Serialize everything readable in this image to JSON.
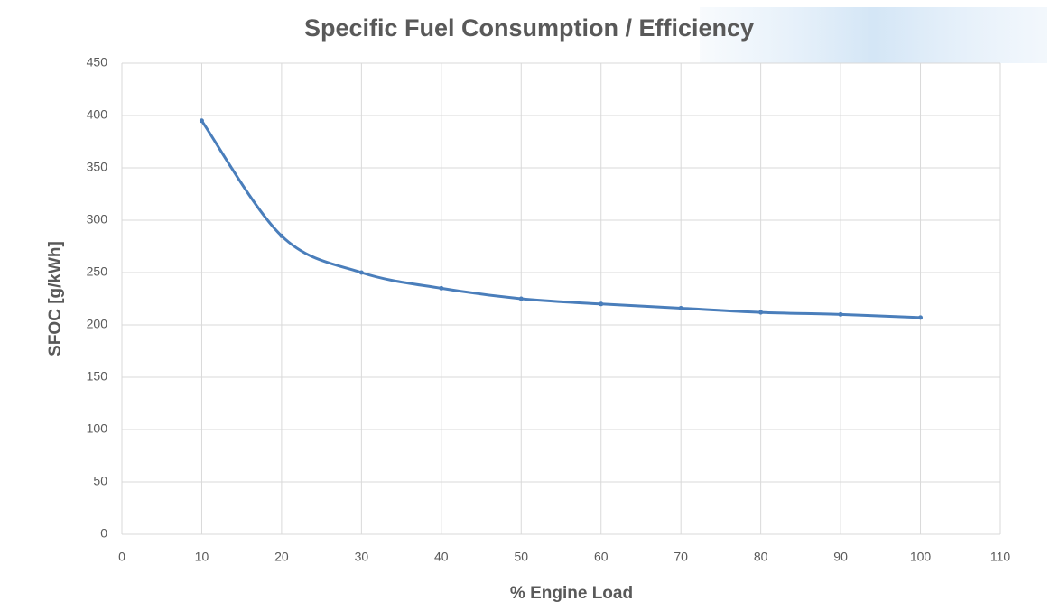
{
  "chart_data": {
    "type": "line",
    "title": "Specific Fuel Consumption / Efficiency",
    "x_label": "% Engine Load",
    "y_label": "SFOC [g/kWh]",
    "x": [
      10,
      20,
      30,
      40,
      50,
      60,
      70,
      80,
      90,
      100
    ],
    "values": [
      395,
      285,
      250,
      235,
      225,
      220,
      216,
      212,
      210,
      207
    ],
    "color": "#4a7ebb",
    "xlim": [
      0,
      110
    ],
    "xticks": [
      0,
      10,
      20,
      30,
      40,
      50,
      60,
      70,
      80,
      90,
      100,
      110
    ],
    "ylim": [
      0,
      450
    ],
    "yticks": [
      0,
      50,
      100,
      150,
      200,
      250,
      300,
      350,
      400,
      450
    ],
    "grid": true,
    "smooth": true
  }
}
